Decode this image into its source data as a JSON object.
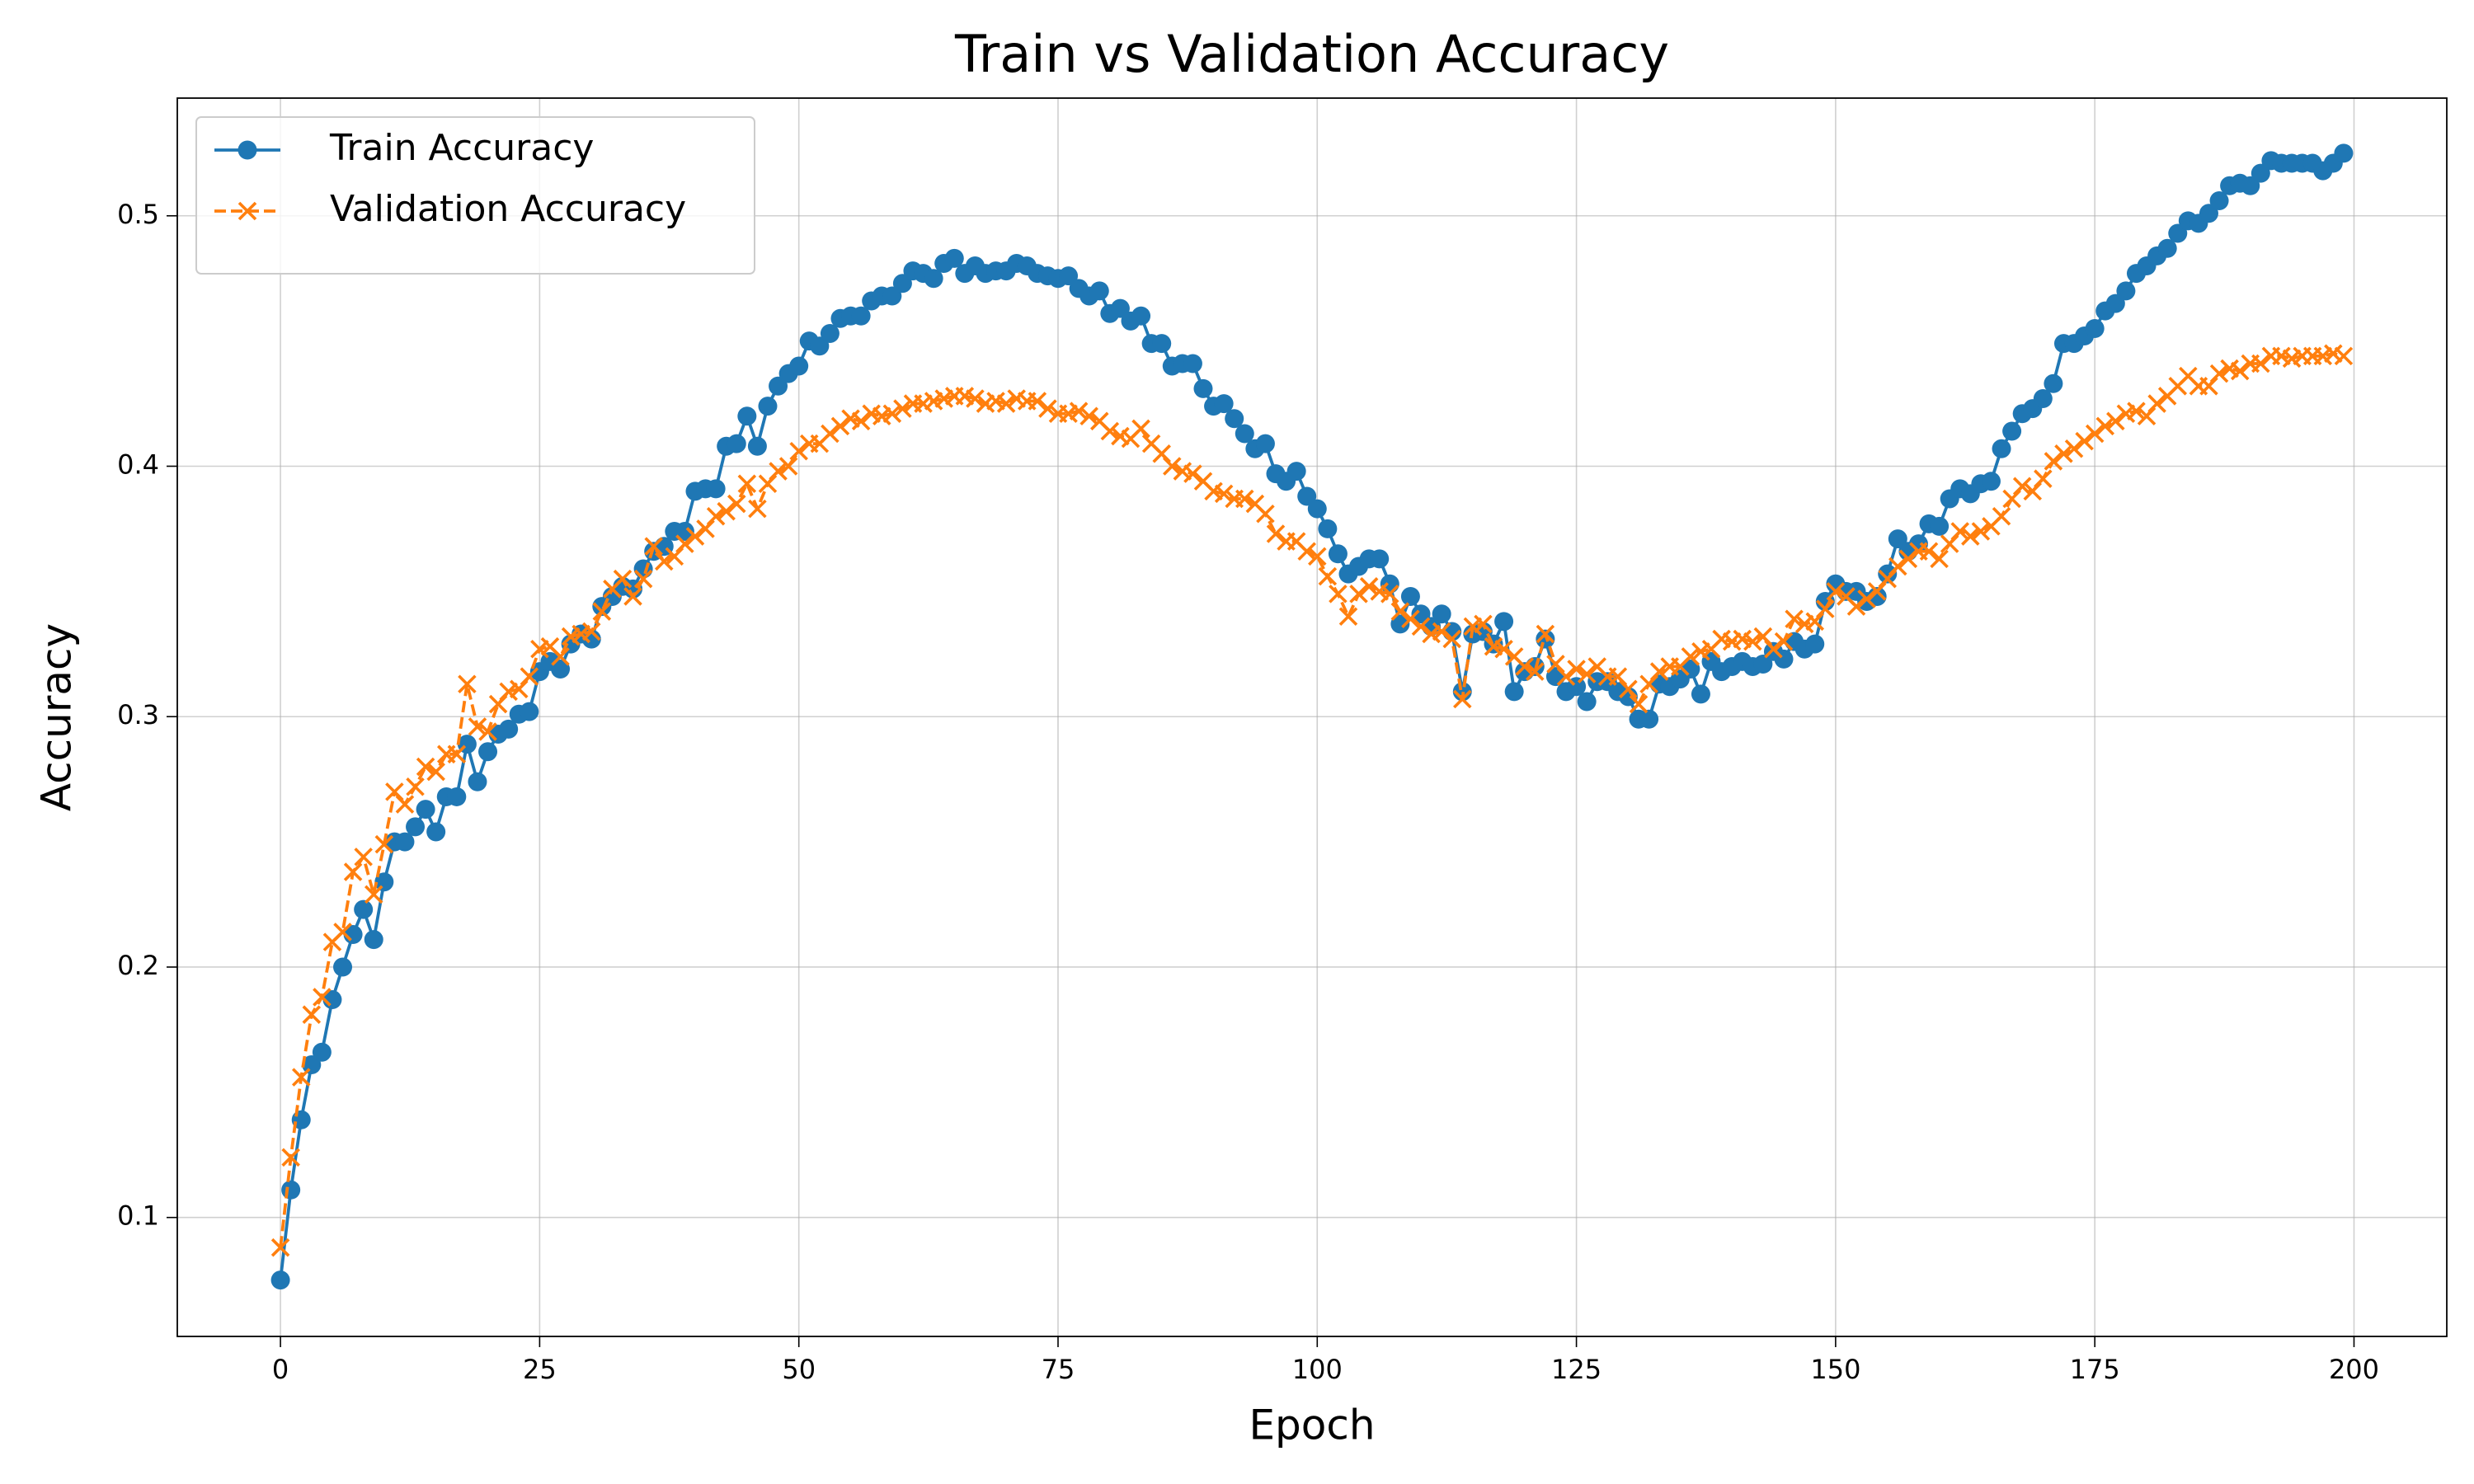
{
  "chart_data": {
    "type": "line",
    "title": "Train vs Validation Accuracy",
    "xlabel": "Epoch",
    "ylabel": "Accuracy",
    "x": [
      0,
      1,
      2,
      3,
      4,
      5,
      6,
      7,
      8,
      9,
      10,
      11,
      12,
      13,
      14,
      15,
      16,
      17,
      18,
      19,
      20,
      21,
      22,
      23,
      24,
      25,
      26,
      27,
      28,
      29,
      30,
      31,
      32,
      33,
      34,
      35,
      36,
      37,
      38,
      39,
      40,
      41,
      42,
      43,
      44,
      45,
      46,
      47,
      48,
      49,
      50,
      51,
      52,
      53,
      54,
      55,
      56,
      57,
      58,
      59,
      60,
      61,
      62,
      63,
      64,
      65,
      66,
      67,
      68,
      69,
      70,
      71,
      72,
      73,
      74,
      75,
      76,
      77,
      78,
      79,
      80,
      81,
      82,
      83,
      84,
      85,
      86,
      87,
      88,
      89,
      90,
      91,
      92,
      93,
      94,
      95,
      96,
      97,
      98,
      99,
      100,
      101,
      102,
      103,
      104,
      105,
      106,
      107,
      108,
      109,
      110,
      111,
      112,
      113,
      114,
      115,
      116,
      117,
      118,
      119,
      120,
      121,
      122,
      123,
      124,
      125,
      126,
      127,
      128,
      129,
      130,
      131,
      132,
      133,
      134,
      135,
      136,
      137,
      138,
      139,
      140,
      141,
      142,
      143,
      144,
      145,
      146,
      147,
      148,
      149,
      150,
      151,
      152,
      153,
      154,
      155,
      156,
      157,
      158,
      159,
      160,
      161,
      162,
      163,
      164,
      165,
      166,
      167,
      168,
      169,
      170,
      171,
      172,
      173,
      174,
      175,
      176,
      177,
      178,
      179,
      180,
      181,
      182,
      183,
      184,
      185,
      186,
      187,
      188,
      189,
      190,
      191,
      192,
      193,
      194,
      195,
      196,
      197,
      198,
      199
    ],
    "series": [
      {
        "name": "Train Accuracy",
        "color": "#1f77b4",
        "marker": "o",
        "linestyle": "solid",
        "values": [
          0.075,
          0.111,
          0.139,
          0.161,
          0.166,
          0.187,
          0.2,
          0.213,
          0.223,
          0.211,
          0.234,
          0.25,
          0.25,
          0.256,
          0.263,
          0.254,
          0.268,
          0.268,
          0.289,
          0.274,
          0.286,
          0.293,
          0.295,
          0.301,
          0.302,
          0.318,
          0.322,
          0.319,
          0.329,
          0.333,
          0.331,
          0.344,
          0.348,
          0.352,
          0.351,
          0.359,
          0.366,
          0.368,
          0.374,
          0.374,
          0.39,
          0.391,
          0.391,
          0.408,
          0.409,
          0.42,
          0.408,
          0.424,
          0.432,
          0.437,
          0.44,
          0.45,
          0.448,
          0.453,
          0.459,
          0.46,
          0.46,
          0.466,
          0.468,
          0.468,
          0.473,
          0.478,
          0.477,
          0.475,
          0.481,
          0.483,
          0.477,
          0.48,
          0.477,
          0.478,
          0.478,
          0.481,
          0.48,
          0.477,
          0.476,
          0.475,
          0.476,
          0.471,
          0.468,
          0.47,
          0.461,
          0.463,
          0.458,
          0.46,
          0.449,
          0.449,
          0.44,
          0.441,
          0.441,
          0.431,
          0.424,
          0.425,
          0.419,
          0.413,
          0.407,
          0.409,
          0.397,
          0.394,
          0.398,
          0.388,
          0.383,
          0.375,
          0.365,
          0.357,
          0.36,
          0.363,
          0.363,
          0.353,
          0.337,
          0.348,
          0.341,
          0.336,
          0.341,
          0.334,
          0.31,
          0.333,
          0.334,
          0.329,
          0.338,
          0.31,
          0.318,
          0.32,
          0.331,
          0.316,
          0.31,
          0.312,
          0.306,
          0.314,
          0.314,
          0.31,
          0.308,
          0.299,
          0.299,
          0.313,
          0.312,
          0.315,
          0.319,
          0.309,
          0.322,
          0.318,
          0.32,
          0.322,
          0.32,
          0.321,
          0.326,
          0.323,
          0.33,
          0.327,
          0.329,
          0.346,
          0.353,
          0.35,
          0.35,
          0.346,
          0.348,
          0.357,
          0.371,
          0.366,
          0.369,
          0.377,
          0.376,
          0.387,
          0.391,
          0.389,
          0.393,
          0.394,
          0.407,
          0.414,
          0.421,
          0.423,
          0.427,
          0.433,
          0.449,
          0.449,
          0.452,
          0.455,
          0.462,
          0.465,
          0.47,
          0.477,
          0.48,
          0.484,
          0.487,
          0.493,
          0.498,
          0.497,
          0.501,
          0.506,
          0.512,
          0.513,
          0.512,
          0.517,
          0.522,
          0.521,
          0.521,
          0.521,
          0.521,
          0.518,
          0.521,
          0.525
        ]
      },
      {
        "name": "Validation Accuracy",
        "color": "#ff7f0e",
        "marker": "x",
        "linestyle": "dashed",
        "values": [
          0.088,
          0.124,
          0.156,
          0.181,
          0.188,
          0.21,
          0.214,
          0.238,
          0.244,
          0.229,
          0.249,
          0.27,
          0.265,
          0.272,
          0.28,
          0.278,
          0.285,
          0.285,
          0.313,
          0.296,
          0.294,
          0.305,
          0.31,
          0.311,
          0.316,
          0.327,
          0.328,
          0.324,
          0.332,
          0.333,
          0.334,
          0.342,
          0.351,
          0.355,
          0.348,
          0.355,
          0.368,
          0.362,
          0.364,
          0.369,
          0.372,
          0.375,
          0.38,
          0.382,
          0.385,
          0.393,
          0.383,
          0.393,
          0.398,
          0.4,
          0.406,
          0.409,
          0.409,
          0.413,
          0.416,
          0.419,
          0.418,
          0.421,
          0.42,
          0.421,
          0.423,
          0.425,
          0.425,
          0.426,
          0.427,
          0.428,
          0.428,
          0.427,
          0.425,
          0.426,
          0.425,
          0.427,
          0.426,
          0.426,
          0.423,
          0.421,
          0.421,
          0.422,
          0.42,
          0.418,
          0.414,
          0.412,
          0.411,
          0.415,
          0.409,
          0.405,
          0.4,
          0.398,
          0.397,
          0.394,
          0.39,
          0.389,
          0.387,
          0.387,
          0.385,
          0.381,
          0.373,
          0.37,
          0.37,
          0.366,
          0.364,
          0.356,
          0.349,
          0.34,
          0.349,
          0.352,
          0.35,
          0.349,
          0.342,
          0.339,
          0.336,
          0.333,
          0.334,
          0.331,
          0.307,
          0.336,
          0.337,
          0.328,
          0.327,
          0.324,
          0.32,
          0.318,
          0.333,
          0.321,
          0.316,
          0.319,
          0.317,
          0.32,
          0.316,
          0.316,
          0.311,
          0.305,
          0.313,
          0.318,
          0.32,
          0.32,
          0.324,
          0.326,
          0.327,
          0.331,
          0.33,
          0.331,
          0.33,
          0.332,
          0.327,
          0.33,
          0.339,
          0.337,
          0.338,
          0.343,
          0.35,
          0.348,
          0.344,
          0.347,
          0.35,
          0.355,
          0.36,
          0.363,
          0.366,
          0.366,
          0.363,
          0.369,
          0.374,
          0.372,
          0.374,
          0.376,
          0.38,
          0.387,
          0.392,
          0.39,
          0.395,
          0.402,
          0.405,
          0.407,
          0.41,
          0.413,
          0.416,
          0.418,
          0.421,
          0.422,
          0.42,
          0.425,
          0.428,
          0.432,
          0.436,
          0.432,
          0.432,
          0.437,
          0.439,
          0.438,
          0.441,
          0.441,
          0.444,
          0.444,
          0.443,
          0.444,
          0.444,
          0.444,
          0.445,
          0.444
        ]
      }
    ],
    "xlim": [
      -9.95,
      208.95
    ],
    "xticks": [
      0,
      25,
      50,
      75,
      100,
      125,
      150,
      175,
      200
    ],
    "ylim": [
      0.0525,
      0.547
    ],
    "yticks": [
      0.1,
      0.2,
      0.3,
      0.4,
      0.5
    ],
    "grid": true,
    "legend": "upper left"
  }
}
